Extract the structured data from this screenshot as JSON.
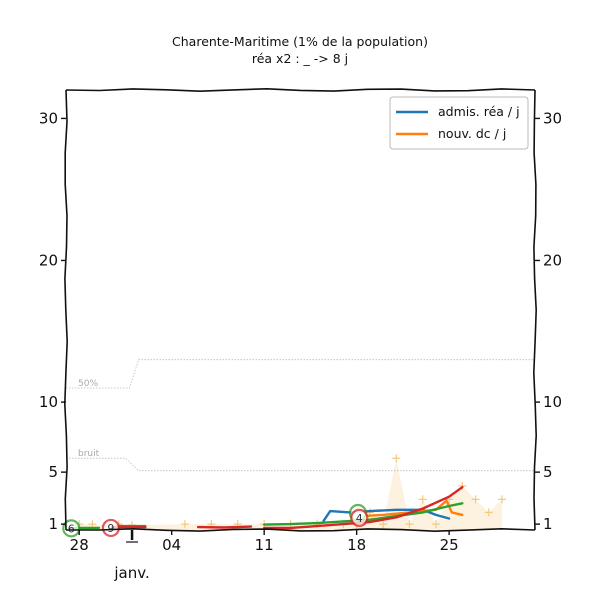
{
  "chart_data": {
    "type": "line",
    "title": "Charente-Maritime (1% de la population)",
    "subtitle": "réa x2 : _ -> 8 j",
    "xlabel": "",
    "ylabel": "",
    "x_ticks": [
      {
        "day": 0,
        "label": "28"
      },
      {
        "day": 7,
        "label": "04"
      },
      {
        "day": 14,
        "label": "11"
      },
      {
        "day": 21,
        "label": "18"
      },
      {
        "day": 28,
        "label": "25"
      }
    ],
    "x_month_label": "janv.",
    "x_range": [
      -1,
      34.5
    ],
    "y_ticks": [
      1,
      5,
      10,
      20,
      30
    ],
    "y_range": [
      0.3,
      32
    ],
    "legend": [
      {
        "label": "admis. réa / j",
        "color": "#1f77b4"
      },
      {
        "label": "nouv. dc / j",
        "color": "#ff7f0e"
      }
    ],
    "reference_lines": [
      {
        "label": "50%",
        "points": [
          [
            -1,
            11
          ],
          [
            3.8,
            11
          ],
          [
            4.5,
            13
          ],
          [
            34.5,
            13
          ]
        ]
      },
      {
        "label": "bruit",
        "points": [
          [
            -1,
            6
          ],
          [
            3.5,
            6
          ],
          [
            4.5,
            5.1
          ],
          [
            34.5,
            5.1
          ]
        ]
      }
    ],
    "series": [
      {
        "color": "#1f77b4",
        "segments": [
          [
            [
              18.5,
              1.3
            ],
            [
              19,
              2.1
            ],
            [
              20.5,
              2.0
            ],
            [
              22,
              2.1
            ],
            [
              24,
              2.2
            ],
            [
              26,
              2.2
            ],
            [
              27,
              1.8
            ],
            [
              28,
              1.5
            ]
          ]
        ]
      },
      {
        "color": "#ff7f0e",
        "segments": [
          [
            [
              21.5,
              1.7
            ],
            [
              23,
              1.8
            ],
            [
              25,
              2.0
            ],
            [
              27,
              2.2
            ],
            [
              27.8,
              2.9
            ],
            [
              28.2,
              2.0
            ],
            [
              29,
              1.8
            ]
          ]
        ]
      },
      {
        "color": "#2ca02c",
        "segments": [
          [
            [
              -0.7,
              0.6
            ],
            [
              0.5,
              0.6
            ],
            [
              1.5,
              0.6
            ]
          ],
          [
            [
              3,
              0.8
            ],
            [
              5,
              0.8
            ]
          ],
          [
            [
              14,
              0.95
            ],
            [
              16,
              1.0
            ],
            [
              18,
              1.1
            ],
            [
              20,
              1.25
            ],
            [
              22,
              1.4
            ],
            [
              24,
              1.7
            ],
            [
              26,
              2.0
            ],
            [
              28,
              2.5
            ],
            [
              29,
              2.7
            ]
          ]
        ]
      },
      {
        "color": "#d62728",
        "segments": [
          [
            [
              2.5,
              0.7
            ],
            [
              3.5,
              0.7
            ],
            [
              5,
              0.7
            ]
          ],
          [
            [
              9,
              0.7
            ],
            [
              11,
              0.65
            ],
            [
              13,
              0.75
            ]
          ],
          [
            [
              14,
              0.6
            ],
            [
              16,
              0.6
            ],
            [
              18,
              0.8
            ],
            [
              20,
              1.0
            ],
            [
              22,
              1.2
            ],
            [
              24,
              1.6
            ],
            [
              26,
              2.3
            ],
            [
              28,
              3.2
            ],
            [
              29,
              3.9
            ]
          ]
        ]
      }
    ],
    "scatter_points": [
      [
        0,
        1.0
      ],
      [
        1,
        1.0
      ],
      [
        2,
        0.85
      ],
      [
        3,
        1.0
      ],
      [
        4,
        0.9
      ],
      [
        8,
        1.0
      ],
      [
        10,
        1.0
      ],
      [
        12,
        1.0
      ],
      [
        14,
        1.0
      ],
      [
        16,
        1.0
      ],
      [
        18,
        1.0
      ],
      [
        20,
        1.0
      ],
      [
        21,
        1.0
      ],
      [
        22,
        2.0
      ],
      [
        23,
        1.0
      ],
      [
        24,
        6.0
      ],
      [
        25,
        1.0
      ],
      [
        26,
        3.0
      ],
      [
        27,
        1.0
      ],
      [
        28,
        3.0
      ],
      [
        29,
        4.0
      ],
      [
        30,
        3.0
      ],
      [
        31,
        2.0
      ],
      [
        32,
        3.0
      ]
    ],
    "marker_badges": [
      {
        "x": -0.6,
        "y": 0.55,
        "label": "6",
        "color": "#2ca02c"
      },
      {
        "x": 2.4,
        "y": 0.6,
        "label": "9",
        "color": "#d62728"
      },
      {
        "x": 21.1,
        "y": 1.95,
        "label": "",
        "color": "#2ca02c"
      },
      {
        "x": 21.2,
        "y": 1.55,
        "label": "4",
        "color": "#d62728"
      }
    ]
  }
}
